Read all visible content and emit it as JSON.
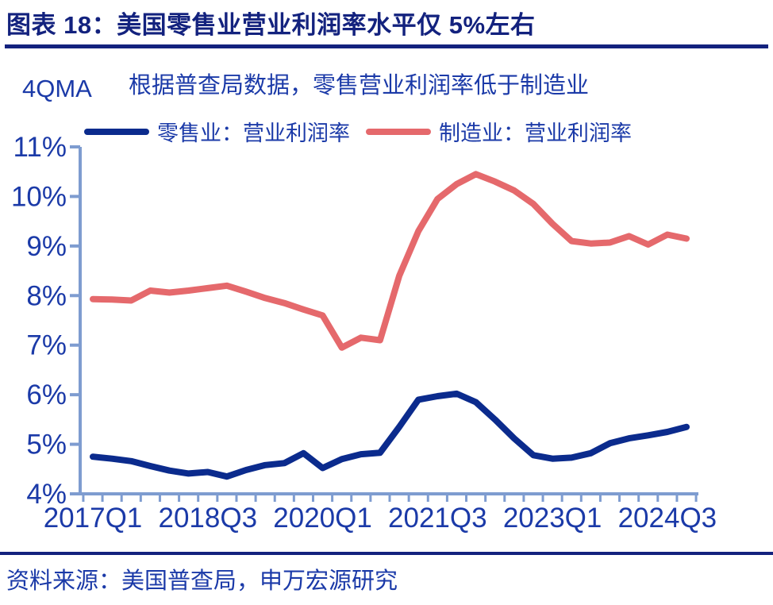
{
  "header": {
    "title": "图表 18：美国零售业营业利润率水平仅 5%左右"
  },
  "footer": {
    "source": "资料来源：美国普查局，申万宏源研究"
  },
  "colors": {
    "title_navy": "#13227e",
    "text_blue": "#1b3aa8",
    "axis_light_blue": "#7e9cd0",
    "retail_line": "#0b2b8d",
    "manufacturing_line": "#e5696c"
  },
  "chart_data": {
    "type": "line",
    "title": "根据普查局数据，零售营业利润率低于制造业",
    "ylabel": "4QMA",
    "xlabel": "",
    "y_unit": "%",
    "ylim": [
      4,
      11
    ],
    "y_ticks": [
      4,
      5,
      6,
      7,
      8,
      9,
      10,
      11
    ],
    "grid": false,
    "legend_position": "top",
    "x": [
      "2017Q1",
      "2017Q2",
      "2017Q3",
      "2017Q4",
      "2018Q1",
      "2018Q2",
      "2018Q3",
      "2018Q4",
      "2019Q1",
      "2019Q2",
      "2019Q3",
      "2019Q4",
      "2020Q1",
      "2020Q2",
      "2020Q3",
      "2020Q4",
      "2021Q1",
      "2021Q2",
      "2021Q3",
      "2021Q4",
      "2022Q1",
      "2022Q2",
      "2022Q3",
      "2022Q4",
      "2023Q1",
      "2023Q2",
      "2023Q3",
      "2023Q4",
      "2024Q1",
      "2024Q2",
      "2024Q3",
      "2024Q4"
    ],
    "x_tick_labels": [
      "2017Q1",
      "2018Q3",
      "2020Q1",
      "2021Q3",
      "2023Q1",
      "2024Q3"
    ],
    "x_tick_indices": [
      0,
      6,
      12,
      18,
      24,
      30
    ],
    "series": [
      {
        "name": "零售业：营业利润率",
        "color": "#0b2b8d",
        "values": [
          4.75,
          4.71,
          4.66,
          4.56,
          4.47,
          4.41,
          4.44,
          4.35,
          4.48,
          4.58,
          4.62,
          4.82,
          4.52,
          4.7,
          4.8,
          4.83,
          5.35,
          5.9,
          5.97,
          6.02,
          5.85,
          5.5,
          5.12,
          4.78,
          4.71,
          4.73,
          4.82,
          5.02,
          5.12,
          5.18,
          5.25,
          5.35
        ]
      },
      {
        "name": "制造业：营业利润率",
        "color": "#e5696c",
        "values": [
          7.93,
          7.92,
          7.9,
          8.1,
          8.06,
          8.1,
          8.15,
          8.2,
          8.08,
          7.95,
          7.85,
          7.72,
          7.6,
          6.95,
          7.15,
          7.1,
          8.4,
          9.3,
          9.95,
          10.25,
          10.45,
          10.3,
          10.12,
          9.85,
          9.45,
          9.1,
          9.05,
          9.07,
          9.2,
          9.03,
          9.23,
          9.15
        ]
      }
    ]
  }
}
